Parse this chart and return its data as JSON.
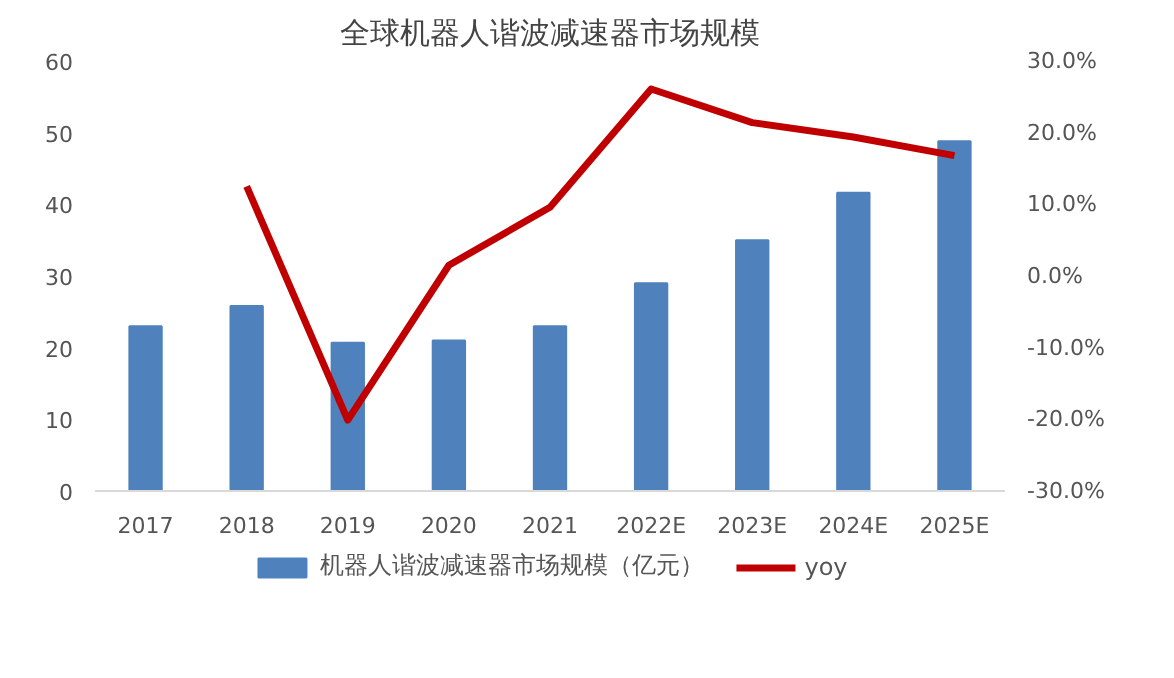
{
  "chart_data": {
    "type": "bar",
    "title": "全球机器人谐波减速器市场规模",
    "categories": [
      "2017",
      "2018",
      "2019",
      "2020",
      "2021",
      "2022E",
      "2023E",
      "2024E",
      "2025E"
    ],
    "series": [
      {
        "name": "机器人谐波减速器市场规模（亿元）",
        "color": "#4f81bd",
        "values": [
          23,
          25.8,
          20.7,
          21,
          23,
          29,
          35,
          41.6,
          48.8
        ]
      },
      {
        "name": "yoy",
        "type": "line",
        "axis": "y2",
        "color": "#c00000",
        "values": [
          null,
          12.5,
          -20.1,
          1.5,
          9.6,
          26.1,
          21.4,
          19.4,
          16.8
        ]
      }
    ],
    "ylim": [
      0,
      60
    ],
    "yticks": [
      0,
      10,
      20,
      30,
      40,
      50,
      60
    ],
    "y2lim": [
      -30,
      30
    ],
    "y2ticks": [
      {
        "value": -30,
        "label": "-30.0%"
      },
      {
        "value": -20,
        "label": "-20.0%"
      },
      {
        "value": -10,
        "label": "-10.0%"
      },
      {
        "value": 0,
        "label": "0.0%"
      },
      {
        "value": 10,
        "label": "10.0%"
      },
      {
        "value": 20,
        "label": "20.0%"
      },
      {
        "value": 30,
        "label": "30.0%"
      }
    ],
    "grid": false,
    "legend": "bottom"
  }
}
